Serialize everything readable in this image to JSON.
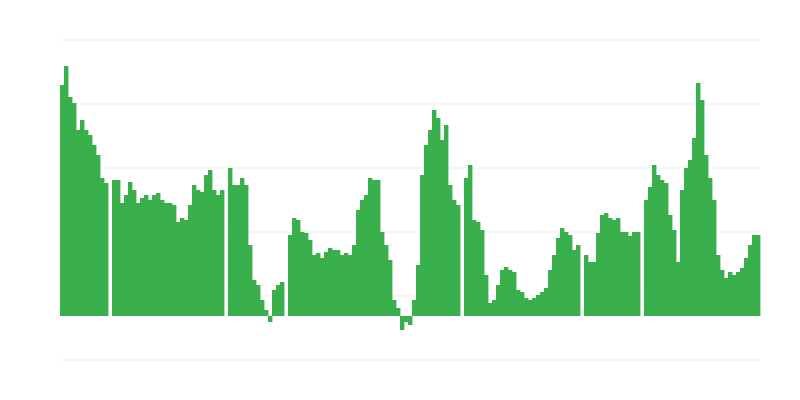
{
  "chart_data": {
    "type": "bar",
    "title": "",
    "xlabel": "",
    "ylabel": "",
    "ylim": [
      -44,
      276
    ],
    "grid": true,
    "gridline_count": 6,
    "legend": "none",
    "colors": {
      "bar": "#39b04c",
      "grid": "#eeeeee",
      "background": "#ffffff"
    },
    "values": [
      231,
      250,
      219,
      213,
      186,
      196,
      186,
      181,
      171,
      161,
      138,
      133,
      null,
      136,
      136,
      113,
      121,
      134,
      126,
      113,
      118,
      121,
      116,
      121,
      123,
      116,
      113,
      113,
      111,
      94,
      98,
      96,
      111,
      131,
      126,
      124,
      141,
      146,
      126,
      121,
      126,
      null,
      148,
      131,
      131,
      138,
      131,
      71,
      36,
      31,
      16,
      6,
      -6,
      26,
      31,
      34,
      null,
      81,
      98,
      96,
      84,
      83,
      76,
      61,
      63,
      58,
      64,
      68,
      66,
      66,
      61,
      63,
      61,
      71,
      106,
      116,
      121,
      138,
      136,
      136,
      84,
      71,
      56,
      16,
      8,
      -14,
      -6,
      -9,
      16,
      51,
      141,
      171,
      186,
      206,
      198,
      176,
      191,
      131,
      116,
      111,
      null,
      138,
      151,
      96,
      94,
      86,
      41,
      13,
      16,
      31,
      46,
      49,
      46,
      44,
      26,
      24,
      18,
      16,
      18,
      21,
      24,
      28,
      46,
      61,
      78,
      88,
      84,
      81,
      66,
      71,
      null,
      61,
      54,
      54,
      83,
      101,
      103,
      98,
      96,
      98,
      84,
      84,
      80,
      84,
      84,
      null,
      116,
      129,
      151,
      141,
      136,
      133,
      101,
      86,
      54,
      126,
      148,
      156,
      178,
      233,
      216,
      161,
      138,
      116,
      61,
      46,
      38,
      44,
      41,
      44,
      48,
      58,
      71,
      81,
      81
    ]
  }
}
